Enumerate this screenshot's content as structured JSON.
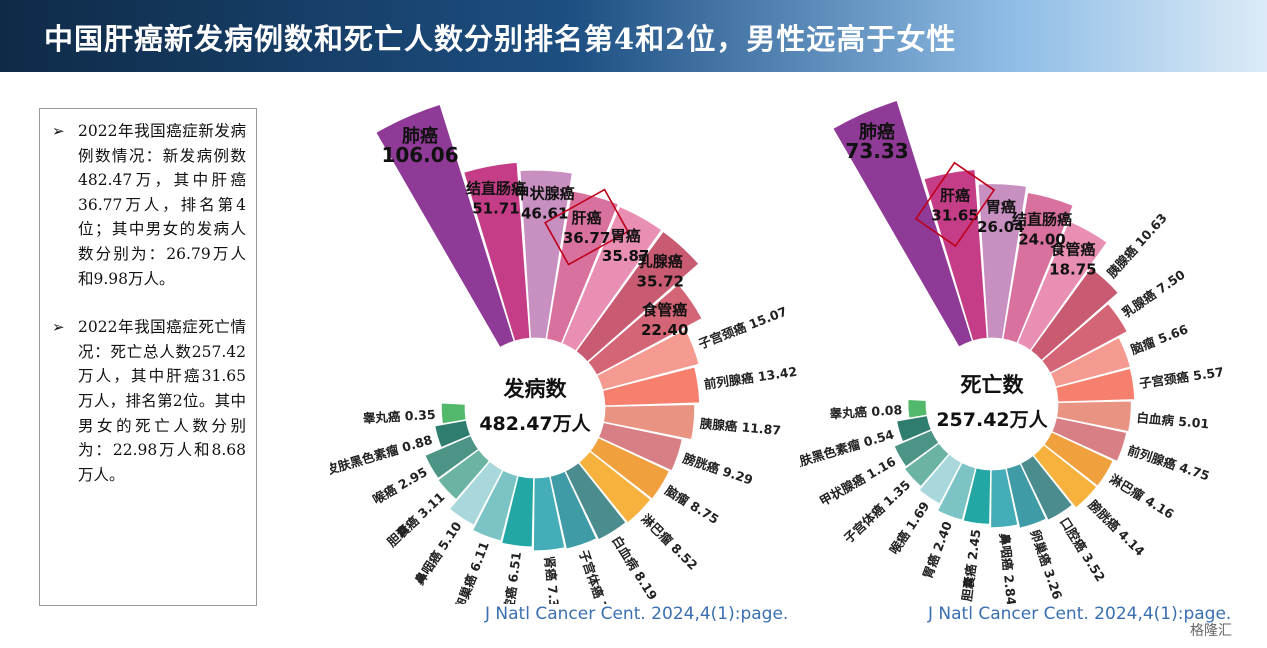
{
  "title": "中国肝癌新发病例数和死亡人数分别排名第4和2位，男性远高于女性",
  "notes": [
    "2022年我国癌症新发病例数情况：新发病例数482.47万，其中肝癌36.77万人，排名第4位；其中男女的发病人数分别为：26.79万人和9.98万人。",
    "2022年我国癌症死亡情况：死亡总人数257.42万人，其中肝癌31.65万人，排名第2位。其中男女的死亡人数分别为：22.98万人和8.68万人。"
  ],
  "chart_data": [
    {
      "type": "radial-bar",
      "center": [
        "发病数",
        "482.47万人"
      ],
      "source": "J Natl Cancer Cent. 2024,4(1):page.",
      "highlight": "肝癌",
      "categories": [
        "肺癌",
        "结直肠癌",
        "甲状腺癌",
        "肝癌",
        "胃癌",
        "乳腺癌",
        "食管癌",
        "子宫颈癌",
        "前列腺癌",
        "胰腺癌",
        "膀胱癌",
        "脑瘤",
        "淋巴瘤",
        "白血病",
        "子宫体癌",
        "肾癌",
        "口腔癌",
        "卵巢癌",
        "鼻咽癌",
        "胆囊癌",
        "喉癌",
        "皮肤黑色素瘤",
        "睾丸癌"
      ],
      "values": [
        106.06,
        51.71,
        46.61,
        36.77,
        35.87,
        35.72,
        22.4,
        15.07,
        13.42,
        11.87,
        9.29,
        8.75,
        8.52,
        8.19,
        7.77,
        7.37,
        6.51,
        6.11,
        5.1,
        3.11,
        2.95,
        0.88,
        0.35
      ],
      "labels": [
        "106.06",
        "51.71",
        "46.61",
        "36.77",
        "35.87",
        "35.72",
        "22.40",
        "15.07",
        "13.42",
        "11.87",
        "9.29",
        "8.75",
        "8.52",
        "8.19",
        "7.77",
        "7.37",
        "6.51",
        "6.11",
        "5.10",
        "3.11",
        "2.95",
        "0.88",
        "0.35"
      ],
      "colors": [
        "#8e3a96",
        "#c53d86",
        "#c890c0",
        "#d9719e",
        "#e88fb3",
        "#c85a72",
        "#d46576",
        "#f59a91",
        "#f6806d",
        "#e99383",
        "#d77f84",
        "#f0a03c",
        "#f6b23d",
        "#4b8c8e",
        "#3f9ca6",
        "#45adb7",
        "#22a7a5",
        "#7cc3c5",
        "#a9d8dc",
        "#6bb3a3",
        "#4c9485",
        "#2e7d6e",
        "#52b86b"
      ]
    },
    {
      "type": "radial-bar",
      "center": [
        "死亡数",
        "257.42万人"
      ],
      "source": "J Natl Cancer Cent. 2024,4(1):page.",
      "highlight": "肝癌",
      "categories": [
        "肺癌",
        "肝癌",
        "胃癌",
        "结直肠癌",
        "食管癌",
        "胰腺癌",
        "乳腺癌",
        "脑瘤",
        "子宫颈癌",
        "白血病",
        "前列腺癌",
        "淋巴瘤",
        "膀胱癌",
        "口腔癌",
        "卵巢癌",
        "鼻咽癌",
        "胆囊癌",
        "胃癌",
        "喉癌",
        "子宫体癌",
        "甲状腺癌",
        "皮肤黑色素瘤",
        "睾丸癌"
      ],
      "values": [
        73.33,
        31.65,
        26.04,
        24.0,
        18.75,
        10.63,
        7.5,
        5.66,
        5.57,
        5.01,
        4.75,
        4.16,
        4.14,
        3.52,
        3.26,
        2.84,
        2.45,
        2.4,
        1.69,
        1.35,
        1.16,
        0.54,
        0.08
      ],
      "labels": [
        "73.33",
        "31.65",
        "26.04",
        "24.00",
        "18.75",
        "10.63",
        "7.50",
        "5.66",
        "5.57",
        "5.01",
        "4.75",
        "4.16",
        "4.14",
        "3.52",
        "3.26",
        "2.84",
        "2.45",
        "2.40",
        "1.69",
        "1.35",
        "1.16",
        "0.54",
        "0.08"
      ],
      "colors": [
        "#8e3a96",
        "#c53d86",
        "#c890c0",
        "#d9719e",
        "#e88fb3",
        "#c85a72",
        "#d46576",
        "#f59a91",
        "#f6806d",
        "#e99383",
        "#d77f84",
        "#f0a03c",
        "#f6b23d",
        "#4b8c8e",
        "#3f9ca6",
        "#45adb7",
        "#22a7a5",
        "#7cc3c5",
        "#a9d8dc",
        "#6bb3a3",
        "#4c9485",
        "#2e7d6e",
        "#52b86b"
      ]
    }
  ],
  "logo": "格隆汇"
}
